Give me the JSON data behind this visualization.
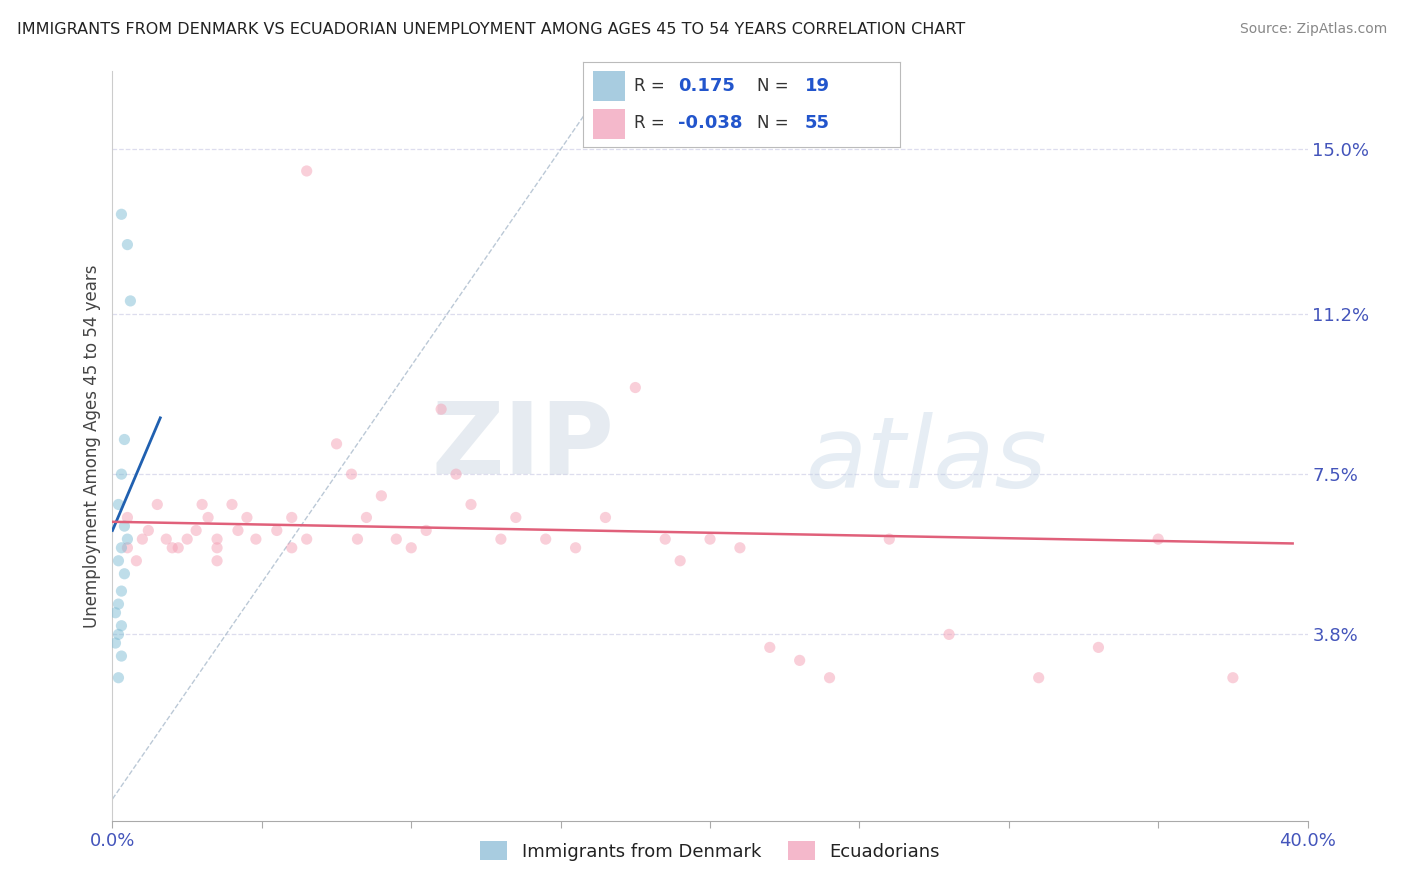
{
  "title": "IMMIGRANTS FROM DENMARK VS ECUADORIAN UNEMPLOYMENT AMONG AGES 45 TO 54 YEARS CORRELATION CHART",
  "source": "Source: ZipAtlas.com",
  "ylabel": "Unemployment Among Ages 45 to 54 years",
  "y_ticks": [
    0.038,
    0.075,
    0.112,
    0.15
  ],
  "y_tick_labels": [
    "3.8%",
    "7.5%",
    "11.2%",
    "15.0%"
  ],
  "x_range": [
    0.0,
    0.4
  ],
  "y_range": [
    -0.005,
    0.168
  ],
  "blue_R": "0.175",
  "blue_N": "19",
  "pink_R": "-0.038",
  "pink_N": "55",
  "blue_scatter_x": [
    0.003,
    0.005,
    0.006,
    0.004,
    0.003,
    0.002,
    0.004,
    0.005,
    0.003,
    0.002,
    0.004,
    0.003,
    0.002,
    0.001,
    0.003,
    0.002,
    0.001,
    0.003,
    0.002
  ],
  "blue_scatter_y": [
    0.135,
    0.128,
    0.115,
    0.083,
    0.075,
    0.068,
    0.063,
    0.06,
    0.058,
    0.055,
    0.052,
    0.048,
    0.045,
    0.043,
    0.04,
    0.038,
    0.036,
    0.033,
    0.028
  ],
  "pink_scatter_x": [
    0.005,
    0.005,
    0.01,
    0.008,
    0.015,
    0.012,
    0.018,
    0.02,
    0.025,
    0.022,
    0.03,
    0.028,
    0.035,
    0.032,
    0.035,
    0.035,
    0.04,
    0.042,
    0.045,
    0.048,
    0.055,
    0.06,
    0.06,
    0.065,
    0.065,
    0.075,
    0.08,
    0.082,
    0.085,
    0.09,
    0.095,
    0.1,
    0.105,
    0.11,
    0.115,
    0.12,
    0.13,
    0.135,
    0.145,
    0.155,
    0.165,
    0.175,
    0.185,
    0.19,
    0.2,
    0.21,
    0.22,
    0.23,
    0.24,
    0.26,
    0.28,
    0.31,
    0.33,
    0.35,
    0.375
  ],
  "pink_scatter_y": [
    0.065,
    0.058,
    0.06,
    0.055,
    0.068,
    0.062,
    0.06,
    0.058,
    0.06,
    0.058,
    0.068,
    0.062,
    0.06,
    0.065,
    0.058,
    0.055,
    0.068,
    0.062,
    0.065,
    0.06,
    0.062,
    0.065,
    0.058,
    0.145,
    0.06,
    0.082,
    0.075,
    0.06,
    0.065,
    0.07,
    0.06,
    0.058,
    0.062,
    0.09,
    0.075,
    0.068,
    0.06,
    0.065,
    0.06,
    0.058,
    0.065,
    0.095,
    0.06,
    0.055,
    0.06,
    0.058,
    0.035,
    0.032,
    0.028,
    0.06,
    0.038,
    0.028,
    0.035,
    0.06,
    0.028
  ],
  "blue_line_x": [
    0.0,
    0.016
  ],
  "blue_line_y": [
    0.062,
    0.088
  ],
  "pink_line_x": [
    0.0,
    0.395
  ],
  "pink_line_y": [
    0.064,
    0.059
  ],
  "ref_line_x": [
    0.0,
    0.165
  ],
  "ref_line_y": [
    0.0,
    0.165
  ],
  "watermark_zip": "ZIP",
  "watermark_atlas": "atlas",
  "background_color": "#ffffff",
  "scatter_size": 65,
  "scatter_alpha": 0.5,
  "blue_color": "#7fbcd4",
  "pink_color": "#f4a0b5",
  "blue_line_color": "#2060b0",
  "pink_line_color": "#e0607a",
  "ref_line_color": "#aabbcc",
  "grid_color": "#ddddee",
  "title_color": "#222222",
  "source_color": "#888888",
  "tick_label_color": "#4455bb",
  "axis_label_color": "#444444",
  "legend_blue_color": "#a8cce0",
  "legend_pink_color": "#f4b8cb",
  "legend_R_color": "#333333",
  "legend_val_color": "#2255cc",
  "x_tick_positions": [
    0.0,
    0.05,
    0.1,
    0.15,
    0.2,
    0.25,
    0.3,
    0.35,
    0.4
  ]
}
